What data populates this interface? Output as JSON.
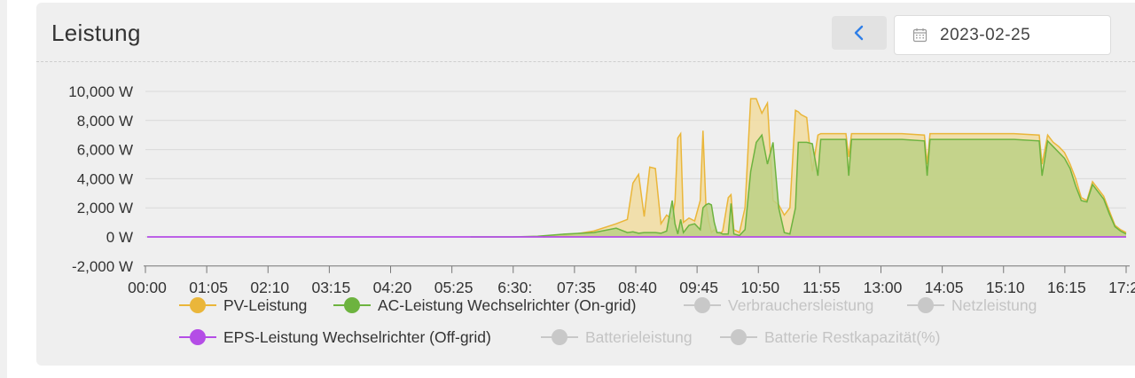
{
  "header": {
    "title": "Leistung",
    "date": "2023-02-25"
  },
  "colors": {
    "pv": "#eab63a",
    "pv_fill": "#f1dca0",
    "ac": "#6db33f",
    "ac_fill": "#bcd185",
    "eps": "#b44de6",
    "disabled": "#c8c8c8",
    "accent": "#2f7fe8"
  },
  "chart_data": {
    "type": "area",
    "y_tick_labels": [
      "10,000 W",
      "8,000 W",
      "6,000 W",
      "4,000 W",
      "2,000 W",
      "0 W",
      "-2,000 W"
    ],
    "y_ticks": [
      10000,
      8000,
      6000,
      4000,
      2000,
      0,
      -2000
    ],
    "ylim": [
      -2000,
      10000
    ],
    "x_tick_labels": [
      "00:00",
      "01:05",
      "02:10",
      "03:15",
      "04:20",
      "05:25",
      "6:30:",
      "07:35",
      "08:40",
      "09:45",
      "10:50",
      "11:55",
      "13:00",
      "14:05",
      "15:10",
      "16:15",
      "17:20"
    ],
    "xlim_hours": [
      0,
      17.5
    ],
    "grid": true,
    "legend_position": "bottom",
    "series": [
      {
        "name": "PV-Leistung",
        "key": "pv",
        "enabled": true,
        "x": [
          7.1,
          7.5,
          8.0,
          8.4,
          8.6,
          8.7,
          8.8,
          8.9,
          9.0,
          9.1,
          9.2,
          9.3,
          9.4,
          9.45,
          9.5,
          9.55,
          9.6,
          9.7,
          9.8,
          9.9,
          9.95,
          10.0,
          10.05,
          10.1,
          10.15,
          10.2,
          10.25,
          10.3,
          10.4,
          10.45,
          10.5,
          10.6,
          10.7,
          10.8,
          10.9,
          11.0,
          11.1,
          11.2,
          11.3,
          11.4,
          11.5,
          11.6,
          11.65,
          11.7,
          11.8,
          11.9,
          12.0,
          12.05,
          12.1,
          12.2,
          12.3,
          12.4,
          12.5,
          12.55,
          12.6,
          12.7,
          13.0,
          13.5,
          13.9,
          13.95,
          14.0,
          14.5,
          14.9,
          15.0,
          15.5,
          15.95,
          16.0,
          16.1,
          16.2,
          16.3,
          16.4,
          16.5,
          16.6,
          16.7,
          16.8,
          16.9,
          17.0,
          17.1,
          17.2,
          17.3,
          17.4,
          17.5
        ],
        "values": [
          0,
          100,
          400,
          900,
          1200,
          3700,
          4300,
          1400,
          4800,
          4700,
          900,
          1500,
          1200,
          2400,
          6800,
          7100,
          1000,
          1300,
          1100,
          2500,
          7300,
          2300,
          1100,
          300,
          500,
          300,
          200,
          400,
          2700,
          2900,
          500,
          300,
          2000,
          9500,
          9500,
          8500,
          9200,
          2500,
          2200,
          1500,
          2000,
          8700,
          8600,
          8400,
          8200,
          4500,
          7000,
          7100,
          7100,
          7100,
          7100,
          7100,
          7100,
          5500,
          7100,
          7100,
          7100,
          7100,
          7000,
          5000,
          7100,
          7100,
          7100,
          7100,
          7100,
          7000,
          5000,
          7000,
          6500,
          6200,
          5800,
          5000,
          4000,
          2700,
          2500,
          3800,
          3300,
          2800,
          1800,
          800,
          500,
          300
        ]
      },
      {
        "name": "AC-Leistung Wechselrichter (On-grid)",
        "key": "ac",
        "enabled": true,
        "x": [
          5.8,
          6.5,
          6.55,
          7.0,
          7.5,
          8.0,
          8.4,
          8.6,
          8.7,
          8.8,
          8.9,
          9.0,
          9.1,
          9.2,
          9.3,
          9.4,
          9.45,
          9.5,
          9.55,
          9.6,
          9.7,
          9.8,
          9.9,
          9.95,
          10.0,
          10.05,
          10.1,
          10.15,
          10.2,
          10.25,
          10.3,
          10.4,
          10.45,
          10.5,
          10.6,
          10.7,
          10.8,
          10.9,
          11.0,
          11.1,
          11.2,
          11.3,
          11.4,
          11.5,
          11.6,
          11.65,
          11.7,
          11.8,
          11.9,
          12.0,
          12.05,
          12.1,
          12.2,
          12.3,
          12.4,
          12.5,
          12.55,
          12.6,
          12.7,
          13.0,
          13.5,
          13.9,
          13.95,
          14.0,
          14.5,
          14.9,
          15.0,
          15.5,
          15.95,
          16.0,
          16.1,
          16.2,
          16.3,
          16.4,
          16.5,
          16.6,
          16.7,
          16.8,
          16.9,
          17.0,
          17.1,
          17.2,
          17.3,
          17.4,
          17.5
        ],
        "values": [
          0,
          0,
          0,
          50,
          200,
          300,
          600,
          300,
          350,
          250,
          300,
          300,
          300,
          250,
          400,
          2500,
          900,
          200,
          1200,
          300,
          800,
          900,
          500,
          2000,
          2200,
          2300,
          2200,
          1000,
          300,
          300,
          200,
          200,
          2300,
          200,
          100,
          500,
          4500,
          6500,
          7000,
          5000,
          6500,
          2000,
          300,
          200,
          2000,
          6500,
          6500,
          6500,
          6400,
          4200,
          6700,
          6700,
          6700,
          6700,
          6700,
          6700,
          4200,
          6700,
          6700,
          6700,
          6700,
          6600,
          4200,
          6700,
          6700,
          6700,
          6700,
          6700,
          6600,
          4200,
          6600,
          6200,
          5800,
          5400,
          4700,
          3500,
          2500,
          2400,
          3600,
          3100,
          2600,
          1600,
          700,
          400,
          200
        ]
      },
      {
        "name": "Verbrauchersleistung",
        "key": "consumer",
        "enabled": false
      },
      {
        "name": "Netzleistung",
        "key": "grid",
        "enabled": false
      },
      {
        "name": "EPS-Leistung Wechselrichter (Off-grid)",
        "key": "eps",
        "enabled": true,
        "x": [
          0,
          17.5
        ],
        "values": [
          0,
          0
        ]
      },
      {
        "name": "Batterieleistung",
        "key": "battery",
        "enabled": false
      },
      {
        "name": "Batterie Restkapazität(%)",
        "key": "battery_soc",
        "enabled": false
      }
    ]
  }
}
